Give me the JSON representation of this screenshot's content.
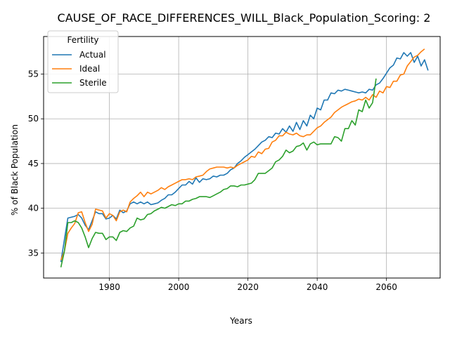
{
  "chart_data": {
    "type": "line",
    "title": "CAUSE_OF_RACE_DIFFERENCES_WILL_Black_Population_Scoring: 2",
    "xlabel": "Years",
    "ylabel": "% of Black Population",
    "xlim": [
      1961,
      2075.5
    ],
    "ylim": [
      32.2,
      59.2
    ],
    "x_ticks": [
      1980,
      2000,
      2020,
      2040,
      2060
    ],
    "y_ticks": [
      35,
      40,
      45,
      50,
      55
    ],
    "grid": true,
    "legend": {
      "title": "Fertility",
      "position": "top-left"
    },
    "x_start": 1966,
    "series": [
      {
        "name": "Actual",
        "color": "#1f77b4",
        "values": [
          34.0,
          36.5,
          38.9,
          39.0,
          39.1,
          39.3,
          38.9,
          38.1,
          37.6,
          38.6,
          39.6,
          39.4,
          39.4,
          38.8,
          38.9,
          39.2,
          38.8,
          39.8,
          39.5,
          39.7,
          40.5,
          40.7,
          40.5,
          40.7,
          40.5,
          40.7,
          40.4,
          40.5,
          40.6,
          40.9,
          41.1,
          41.5,
          41.5,
          41.8,
          42.2,
          42.6,
          42.6,
          43.0,
          42.7,
          43.4,
          42.9,
          43.3,
          43.2,
          43.3,
          43.6,
          43.5,
          43.7,
          43.7,
          43.9,
          44.3,
          44.5,
          45.0,
          45.3,
          45.7,
          46.0,
          46.3,
          46.6,
          47.0,
          47.4,
          47.6,
          48.0,
          47.9,
          48.4,
          48.3,
          48.9,
          48.5,
          49.2,
          48.6,
          49.6,
          48.8,
          49.8,
          49.2,
          50.4,
          50.0,
          51.2,
          51.0,
          52.1,
          52.1,
          52.9,
          52.8,
          53.2,
          53.1,
          53.3,
          53.2,
          53.1,
          53.0,
          52.9,
          53.0,
          52.9,
          53.3,
          53.2,
          53.8,
          54.0,
          54.5,
          55.1,
          55.7,
          56.0,
          56.8,
          56.7,
          57.4,
          57.0,
          57.4,
          56.3,
          57.0,
          55.9,
          56.6,
          55.4
        ]
      },
      {
        "name": "Ideal",
        "color": "#ff7f0e",
        "values": [
          34.2,
          35.2,
          37.2,
          37.8,
          38.3,
          39.5,
          39.6,
          38.4,
          37.4,
          38.2,
          39.9,
          39.8,
          39.7,
          38.9,
          39.4,
          39.2,
          38.6,
          39.6,
          39.8,
          39.6,
          40.7,
          41.1,
          41.4,
          41.8,
          41.3,
          41.8,
          41.6,
          41.8,
          42.0,
          42.3,
          42.1,
          42.4,
          42.6,
          42.8,
          43.0,
          43.2,
          43.2,
          43.3,
          43.2,
          43.5,
          43.6,
          43.7,
          44.1,
          44.4,
          44.5,
          44.6,
          44.6,
          44.6,
          44.5,
          44.6,
          44.5,
          44.8,
          45.0,
          45.2,
          45.4,
          45.8,
          45.7,
          46.3,
          46.1,
          46.6,
          46.7,
          47.4,
          47.6,
          48.1,
          48.1,
          48.5,
          48.3,
          48.2,
          48.4,
          48.1,
          48.0,
          48.2,
          48.2,
          48.6,
          49.0,
          49.2,
          49.6,
          49.9,
          50.2,
          50.7,
          51.0,
          51.3,
          51.5,
          51.7,
          51.9,
          52.0,
          52.2,
          52.1,
          52.4,
          52.1,
          52.7,
          52.4,
          53.1,
          52.9,
          53.6,
          53.5,
          54.2,
          54.2,
          54.9,
          55.0,
          55.9,
          56.4,
          56.9,
          57.1,
          57.5,
          57.8
        ]
      },
      {
        "name": "Sterile",
        "color": "#2ca02c",
        "values": [
          33.4,
          35.2,
          38.4,
          38.4,
          38.6,
          38.4,
          37.8,
          36.8,
          35.6,
          36.6,
          37.3,
          37.2,
          37.2,
          36.5,
          36.8,
          36.8,
          36.4,
          37.3,
          37.5,
          37.4,
          37.8,
          38.0,
          38.9,
          38.7,
          38.8,
          39.3,
          39.4,
          39.7,
          39.9,
          40.1,
          40.0,
          40.2,
          40.4,
          40.3,
          40.5,
          40.5,
          40.8,
          40.8,
          41.0,
          41.1,
          41.3,
          41.3,
          41.3,
          41.2,
          41.4,
          41.6,
          41.8,
          42.1,
          42.2,
          42.5,
          42.5,
          42.4,
          42.6,
          42.6,
          42.7,
          42.8,
          43.2,
          43.9,
          43.9,
          43.9,
          44.2,
          44.5,
          45.2,
          45.4,
          45.8,
          46.5,
          46.2,
          46.4,
          46.9,
          47.0,
          47.3,
          46.5,
          47.2,
          47.4,
          47.1,
          47.2,
          47.2,
          47.2,
          47.2,
          48.0,
          47.9,
          47.5,
          48.9,
          48.9,
          49.8,
          49.3,
          51.0,
          50.8,
          52.1,
          51.2,
          51.8,
          54.5
        ]
      }
    ]
  }
}
